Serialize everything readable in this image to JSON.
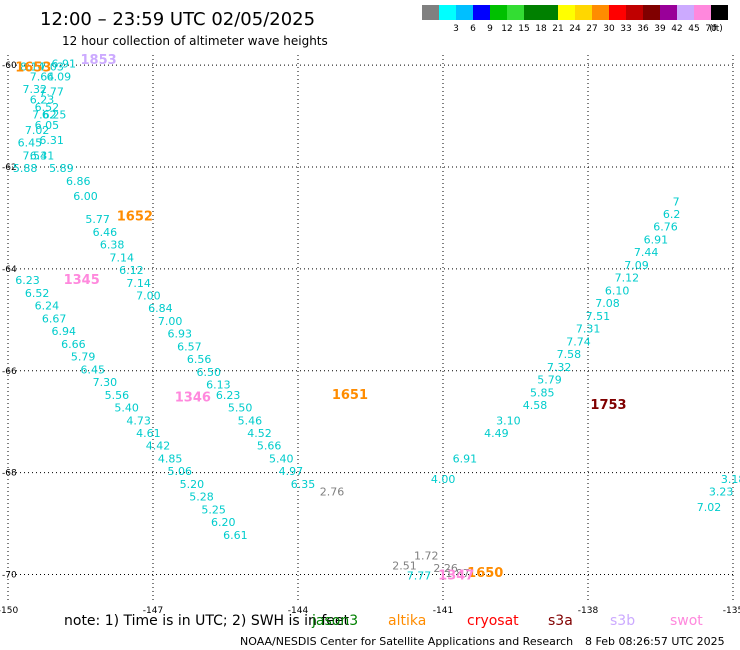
{
  "header": {
    "title": "12:00 – 23:59 UTC 02/05/2025",
    "subtitle": "12 hour collection of altimeter wave heights"
  },
  "scale": {
    "unit": "(ft)",
    "steps": [
      {
        "color": "#808080",
        "label": ""
      },
      {
        "color": "#00ffff",
        "label": "3"
      },
      {
        "color": "#00bfff",
        "label": "6"
      },
      {
        "color": "#0000ff",
        "label": "9"
      },
      {
        "color": "#00c000",
        "label": "12"
      },
      {
        "color": "#33dd33",
        "label": "15"
      },
      {
        "color": "#008000",
        "label": "18"
      },
      {
        "color": "#008000",
        "label": "21"
      },
      {
        "color": "#ffff00",
        "label": "24"
      },
      {
        "color": "#ffd700",
        "label": "27"
      },
      {
        "color": "#ff8c00",
        "label": "30"
      },
      {
        "color": "#ff0000",
        "label": "33"
      },
      {
        "color": "#c00000",
        "label": "36"
      },
      {
        "color": "#800000",
        "label": "39"
      },
      {
        "color": "#990099",
        "label": "42"
      },
      {
        "color": "#ccaaff",
        "label": "45"
      },
      {
        "color": "#ff88dd",
        "label": "70"
      },
      {
        "color": "#000000",
        "label": ""
      }
    ]
  },
  "chart_data": {
    "type": "scatter",
    "title": "12:00 – 23:59 UTC 02/05/2025",
    "subtitle": "12 hour collection of altimeter wave heights",
    "xlim": [
      -150,
      -135
    ],
    "ylim": [
      -70.5,
      -59.8
    ],
    "grid": true,
    "x_ticks": [
      "-150",
      "-147",
      "-144",
      "-141",
      "-138",
      "-135"
    ],
    "y_ticks": [
      "-60",
      "-62",
      "-64",
      "-66",
      "-68",
      "-70"
    ],
    "series": [
      {
        "name": "jason3",
        "color": "#00cccc",
        "points": [
          {
            "x": -149.75,
            "y": -60.1,
            "v": "8.14"
          },
          {
            "x": -149.1,
            "y": -60.05,
            "v": "6.91"
          },
          {
            "x": -149.35,
            "y": -60.1,
            "v": "7.03"
          },
          {
            "x": -149.55,
            "y": -60.3,
            "v": "7.64"
          },
          {
            "x": -149.2,
            "y": -60.3,
            "v": "6.09"
          },
          {
            "x": -149.35,
            "y": -60.6,
            "v": "7.77"
          },
          {
            "x": -149.7,
            "y": -60.55,
            "v": "7.32"
          },
          {
            "x": -149.55,
            "y": -60.75,
            "v": "6.23"
          },
          {
            "x": -149.45,
            "y": -60.9,
            "v": "6.52"
          },
          {
            "x": -149.5,
            "y": -61.05,
            "v": "7.62"
          },
          {
            "x": -149.3,
            "y": -61.05,
            "v": "6.25"
          },
          {
            "x": -149.45,
            "y": -61.25,
            "v": "6.05"
          },
          {
            "x": -149.65,
            "y": -61.35,
            "v": "7.02"
          },
          {
            "x": -149.35,
            "y": -61.55,
            "v": "6.31"
          },
          {
            "x": -149.8,
            "y": -61.6,
            "v": "6.45"
          },
          {
            "x": -149.55,
            "y": -61.85,
            "v": "6.31"
          },
          {
            "x": -149.7,
            "y": -61.85,
            "v": "7.54"
          },
          {
            "x": -149.15,
            "y": -62.1,
            "v": "5.89"
          },
          {
            "x": -149.9,
            "y": -62.1,
            "v": "5.88"
          },
          {
            "x": -148.8,
            "y": -62.35,
            "v": "6.86"
          },
          {
            "x": -148.65,
            "y": -62.65,
            "v": "6.00"
          },
          {
            "x": -148.4,
            "y": -63.1,
            "v": "5.77"
          },
          {
            "x": -148.25,
            "y": -63.35,
            "v": "6.46"
          },
          {
            "x": -148.1,
            "y": -63.6,
            "v": "6.38"
          },
          {
            "x": -147.9,
            "y": -63.85,
            "v": "7.14"
          },
          {
            "x": -147.7,
            "y": -64.1,
            "v": "6.12"
          },
          {
            "x": -147.55,
            "y": -64.35,
            "v": "7.14"
          },
          {
            "x": -147.35,
            "y": -64.6,
            "v": "7.00"
          },
          {
            "x": -147.1,
            "y": -64.85,
            "v": "6.84"
          },
          {
            "x": -146.9,
            "y": -65.1,
            "v": "7.00"
          },
          {
            "x": -146.7,
            "y": -65.35,
            "v": "6.93"
          },
          {
            "x": -146.5,
            "y": -65.6,
            "v": "6.57"
          },
          {
            "x": -146.3,
            "y": -65.85,
            "v": "6.56"
          },
          {
            "x": -146.1,
            "y": -66.1,
            "v": "6.50"
          },
          {
            "x": -145.9,
            "y": -66.35,
            "v": "6.13"
          },
          {
            "x": -145.7,
            "y": -66.55,
            "v": "6.23"
          },
          {
            "x": -145.45,
            "y": -66.8,
            "v": "5.50"
          },
          {
            "x": -145.25,
            "y": -67.05,
            "v": "5.46"
          },
          {
            "x": -145.05,
            "y": -67.3,
            "v": "4.52"
          },
          {
            "x": -144.85,
            "y": -67.55,
            "v": "5.66"
          },
          {
            "x": -144.6,
            "y": -67.8,
            "v": "5.40"
          },
          {
            "x": -144.4,
            "y": -68.05,
            "v": "4.97"
          },
          {
            "x": -144.15,
            "y": -68.3,
            "v": "6.35"
          },
          {
            "x": -149.85,
            "y": -64.3,
            "v": "6.23"
          },
          {
            "x": -149.65,
            "y": -64.55,
            "v": "6.52"
          },
          {
            "x": -149.45,
            "y": -64.8,
            "v": "6.24"
          },
          {
            "x": -149.3,
            "y": -65.05,
            "v": "6.67"
          },
          {
            "x": -149.1,
            "y": -65.3,
            "v": "6.94"
          },
          {
            "x": -148.9,
            "y": -65.55,
            "v": "6.66"
          },
          {
            "x": -148.7,
            "y": -65.8,
            "v": "5.79"
          },
          {
            "x": -148.5,
            "y": -66.05,
            "v": "6.45"
          },
          {
            "x": -148.25,
            "y": -66.3,
            "v": "7.30"
          },
          {
            "x": -148.0,
            "y": -66.55,
            "v": "5.56"
          },
          {
            "x": -147.8,
            "y": -66.8,
            "v": "5.40"
          },
          {
            "x": -147.55,
            "y": -67.05,
            "v": "4.73"
          },
          {
            "x": -147.35,
            "y": -67.3,
            "v": "4.61"
          },
          {
            "x": -147.15,
            "y": -67.55,
            "v": "4.42"
          },
          {
            "x": -146.9,
            "y": -67.8,
            "v": "4.85"
          },
          {
            "x": -146.7,
            "y": -68.05,
            "v": "5.06"
          },
          {
            "x": -146.45,
            "y": -68.3,
            "v": "5.20"
          },
          {
            "x": -146.25,
            "y": -68.55,
            "v": "5.28"
          },
          {
            "x": -146.0,
            "y": -68.8,
            "v": "5.25"
          },
          {
            "x": -145.8,
            "y": -69.05,
            "v": "6.20"
          },
          {
            "x": -145.55,
            "y": -69.3,
            "v": "6.61"
          },
          {
            "x": -139.2,
            "y": -66.5,
            "v": "5.85"
          },
          {
            "x": -139.35,
            "y": -66.75,
            "v": "4.58"
          },
          {
            "x": -139.05,
            "y": -66.25,
            "v": "5.79"
          },
          {
            "x": -138.85,
            "y": -66.0,
            "v": "7.32"
          },
          {
            "x": -138.65,
            "y": -65.75,
            "v": "7.58"
          },
          {
            "x": -138.45,
            "y": -65.5,
            "v": "7.74"
          },
          {
            "x": -138.25,
            "y": -65.25,
            "v": "7.31"
          },
          {
            "x": -138.05,
            "y": -65.0,
            "v": "7.51"
          },
          {
            "x": -137.85,
            "y": -64.75,
            "v": "7.08"
          },
          {
            "x": -137.65,
            "y": -64.5,
            "v": "6.10"
          },
          {
            "x": -137.45,
            "y": -64.25,
            "v": "7.12"
          },
          {
            "x": -137.25,
            "y": -64.0,
            "v": "7.09"
          },
          {
            "x": -137.05,
            "y": -63.75,
            "v": "7.44"
          },
          {
            "x": -136.85,
            "y": -63.5,
            "v": "6.91"
          },
          {
            "x": -136.65,
            "y": -63.25,
            "v": "6.76"
          },
          {
            "x": -136.45,
            "y": -63.0,
            "v": "6.2"
          },
          {
            "x": -136.25,
            "y": -62.75,
            "v": "7"
          },
          {
            "x": -139.9,
            "y": -67.05,
            "v": "3.10"
          },
          {
            "x": -140.15,
            "y": -67.3,
            "v": "4.49"
          },
          {
            "x": -140.8,
            "y": -67.8,
            "v": "6.91"
          },
          {
            "x": -141.25,
            "y": -68.2,
            "v": "4.00"
          },
          {
            "x": -135.25,
            "y": -68.2,
            "v": "3.18"
          },
          {
            "x": -135.5,
            "y": -68.45,
            "v": "3.23"
          },
          {
            "x": -135.75,
            "y": -68.75,
            "v": "7.02"
          },
          {
            "x": -141.75,
            "y": -70.1,
            "v": "7.77"
          }
        ]
      },
      {
        "name": "altika",
        "color": "#808080",
        "points": [
          {
            "x": -143.55,
            "y": -68.45,
            "v": "2.76"
          },
          {
            "x": -141.6,
            "y": -69.7,
            "v": "1.72"
          },
          {
            "x": -142.05,
            "y": -69.9,
            "v": "2.51"
          },
          {
            "x": -141.2,
            "y": -69.95,
            "v": "2.26"
          },
          {
            "x": -140.95,
            "y": -70.05,
            "v": "1.87"
          }
        ]
      }
    ],
    "time_labels": [
      {
        "x": -148.5,
        "y": -59.98,
        "v": "1853",
        "color": "#ccaaff"
      },
      {
        "x": -149.85,
        "y": -60.12,
        "v": "1653",
        "color": "#ff8c00"
      },
      {
        "x": -147.75,
        "y": -63.05,
        "v": "1652",
        "color": "#ff8c00"
      },
      {
        "x": -148.85,
        "y": -64.3,
        "v": "1345",
        "color": "#ff88dd"
      },
      {
        "x": -146.55,
        "y": -66.6,
        "v": "1346",
        "color": "#ff88dd"
      },
      {
        "x": -143.3,
        "y": -66.55,
        "v": "1651",
        "color": "#ff8c00"
      },
      {
        "x": -137.95,
        "y": -66.75,
        "v": "1753",
        "color": "#800000"
      },
      {
        "x": -140.5,
        "y": -70.05,
        "v": "1650",
        "color": "#ff8c00"
      },
      {
        "x": -141.1,
        "y": -70.1,
        "v": "1347",
        "color": "#ff88dd"
      }
    ]
  },
  "legend": {
    "note": "note: 1) Time is in UTC; 2) SWH is in feet",
    "satellites": [
      {
        "name": "jason3",
        "color": "#008000"
      },
      {
        "name": "altika",
        "color": "#ff8c00"
      },
      {
        "name": "cryosat",
        "color": "#ff0000"
      },
      {
        "name": "s3a",
        "color": "#800000"
      },
      {
        "name": "s3b",
        "color": "#ccaaff"
      },
      {
        "name": "swot",
        "color": "#ff88dd"
      }
    ]
  },
  "footer": {
    "credit": "NOAA/NESDIS Center for Satellite Applications and Research",
    "generated": "8 Feb 08:26:57 UTC 2025"
  }
}
